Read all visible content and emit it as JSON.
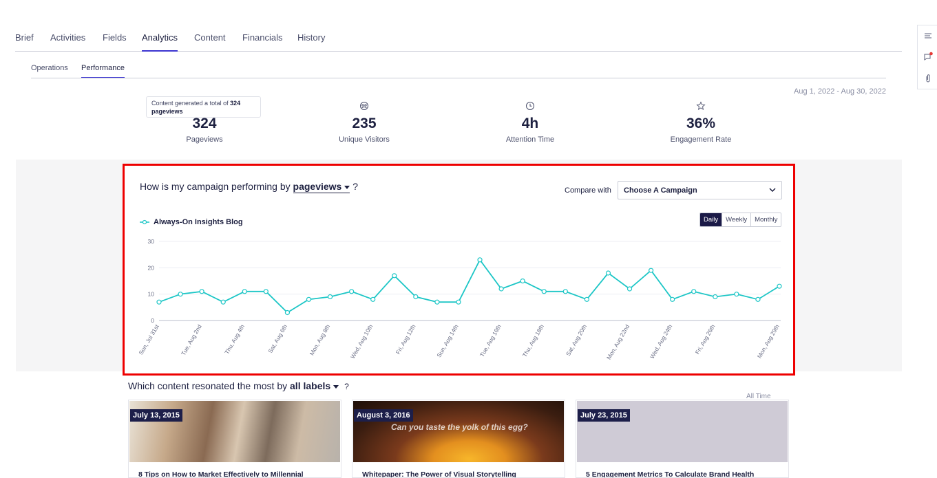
{
  "tabs": [
    "Brief",
    "Activities",
    "Fields",
    "Analytics",
    "Content",
    "Financials",
    "History"
  ],
  "active_tab": "Analytics",
  "subtabs": [
    "Operations",
    "Performance"
  ],
  "active_subtab": "Performance",
  "date_range": "Aug 1, 2022 - Aug 30, 2022",
  "tooltip": {
    "prefix": "Content generated a total of ",
    "value": "324",
    "suffix": "pageviews"
  },
  "metrics": [
    {
      "value": "324",
      "label": "Pageviews",
      "icon": "eye-icon"
    },
    {
      "value": "235",
      "label": "Unique Visitors",
      "icon": "users-icon"
    },
    {
      "value": "4h",
      "label": "Attention Time",
      "icon": "clock-icon"
    },
    {
      "value": "36%",
      "label": "Engagement Rate",
      "icon": "star-icon"
    }
  ],
  "chart_panel": {
    "question_prefix": "How is my campaign performing by",
    "metric_dropdown": "pageviews",
    "question_suffix": "?",
    "compare_label": "Compare with",
    "compare_placeholder": "Choose A Campaign",
    "granularity": [
      "Daily",
      "Weekly",
      "Monthly"
    ],
    "active_granularity": "Daily"
  },
  "colors": {
    "accent": "#3b34d1",
    "series": "#1cc6c6",
    "highlight_border": "#ee0000",
    "dark": "#1d1f4a"
  },
  "chart_data": {
    "type": "line",
    "series": [
      {
        "name": "Always-On Insights Blog",
        "values": [
          7,
          10,
          11,
          7,
          11,
          11,
          3,
          8,
          9,
          11,
          8,
          17,
          9,
          7,
          7,
          23,
          12,
          15,
          11,
          11,
          8,
          18,
          12,
          19,
          8,
          11,
          9,
          10,
          8,
          13
        ]
      }
    ],
    "x": [
      "Sun, Jul 31st",
      "Mon, Aug 1st",
      "Tue, Aug 2nd",
      "Wed, Aug 3rd",
      "Thu, Aug 4th",
      "Fri, Aug 5th",
      "Sat, Aug 6th",
      "Sun, Aug 7th",
      "Mon, Aug 8th",
      "Tue, Aug 9th",
      "Wed, Aug 10th",
      "Thu, Aug 11th",
      "Fri, Aug 12th",
      "Sat, Aug 13th",
      "Sun, Aug 14th",
      "Mon, Aug 15th",
      "Tue, Aug 16th",
      "Wed, Aug 17th",
      "Thu, Aug 18th",
      "Fri, Aug 19th",
      "Sat, Aug 20th",
      "Sun, Aug 21st",
      "Mon, Aug 22nd",
      "Tue, Aug 23rd",
      "Wed, Aug 24th",
      "Thu, Aug 25th",
      "Fri, Aug 26th",
      "Sat, Aug 27th",
      "Sun, Aug 28th",
      "Mon, Aug 29th"
    ],
    "xticks": [
      "Sun, Jul 31st",
      "Tue, Aug 2nd",
      "Thu, Aug 4th",
      "Sat, Aug 6th",
      "Mon, Aug 8th",
      "Wed, Aug 10th",
      "Fri, Aug 12th",
      "Sun, Aug 14th",
      "Tue, Aug 16th",
      "Thu, Aug 18th",
      "Sat, Aug 20th",
      "Mon, Aug 22nd",
      "Wed, Aug 24th",
      "Fri, Aug 26th",
      "Mon, Aug 29th"
    ],
    "yticks": [
      "0",
      "10",
      "20",
      "30"
    ],
    "ylim": [
      0,
      30
    ],
    "grid": true,
    "legend_position": "top-left"
  },
  "content_section": {
    "prefix": "Which content resonated the most by",
    "dropdown": "all labels",
    "suffix": "?",
    "time_filter": "All Time",
    "cards": [
      {
        "date": "July 13, 2015",
        "title": "8 Tips on How to Market Effectively to Millennial"
      },
      {
        "date": "August 3, 2016",
        "title": "Whitepaper: The Power of Visual Storytelling",
        "image_text": "Can you taste the yolk of this egg?"
      },
      {
        "date": "July 23, 2015",
        "title": "5 Engagement Metrics To Calculate Brand Health"
      }
    ]
  }
}
